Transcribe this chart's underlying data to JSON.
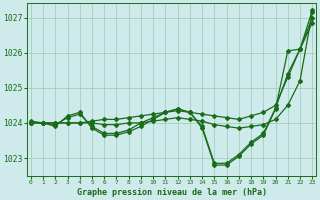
{
  "title": "Graphe pression niveau de la mer (hPa)",
  "bg_color": "#ceeaea",
  "line_color": "#1a6b1a",
  "grid_color": "#9dc8b8",
  "ylim": [
    1022.5,
    1027.4
  ],
  "xlim": [
    -0.3,
    23.3
  ],
  "yticks": [
    1023,
    1024,
    1025,
    1026,
    1027
  ],
  "xticks": [
    0,
    1,
    2,
    3,
    4,
    5,
    6,
    7,
    8,
    9,
    10,
    11,
    12,
    13,
    14,
    15,
    16,
    17,
    18,
    19,
    20,
    21,
    22,
    23
  ],
  "series": [
    [
      1024.0,
      1024.0,
      1024.0,
      1024.0,
      1024.0,
      1024.05,
      1024.1,
      1024.1,
      1024.15,
      1024.2,
      1024.25,
      1024.3,
      1024.35,
      1024.3,
      1024.25,
      1024.2,
      1024.15,
      1024.1,
      1024.2,
      1024.3,
      1024.5,
      1025.3,
      1026.1,
      1027.2
    ],
    [
      1024.0,
      1024.0,
      1023.9,
      1024.2,
      1024.3,
      1023.85,
      1023.65,
      1023.65,
      1023.75,
      1023.9,
      1024.1,
      1024.3,
      1024.4,
      1024.3,
      1023.85,
      1022.8,
      1022.8,
      1023.05,
      1023.4,
      1023.65,
      1024.4,
      1026.05,
      1026.1,
      1026.85
    ],
    [
      1024.0,
      1024.0,
      1023.95,
      1024.15,
      1024.25,
      1023.9,
      1023.7,
      1023.7,
      1023.8,
      1024.0,
      1024.15,
      1024.3,
      1024.4,
      1024.3,
      1023.9,
      1022.85,
      1022.85,
      1023.1,
      1023.45,
      1023.7,
      1024.42,
      1025.4,
      1026.1,
      1027.0
    ],
    [
      1024.05,
      1024.0,
      1024.0,
      1024.0,
      1024.0,
      1024.0,
      1023.95,
      1023.95,
      1024.0,
      1024.0,
      1024.05,
      1024.1,
      1024.15,
      1024.1,
      1024.05,
      1023.95,
      1023.9,
      1023.85,
      1023.9,
      1023.95,
      1024.1,
      1024.5,
      1025.2,
      1027.15
    ]
  ],
  "marker": "D",
  "markersize": 2.0,
  "linewidth": 0.9
}
